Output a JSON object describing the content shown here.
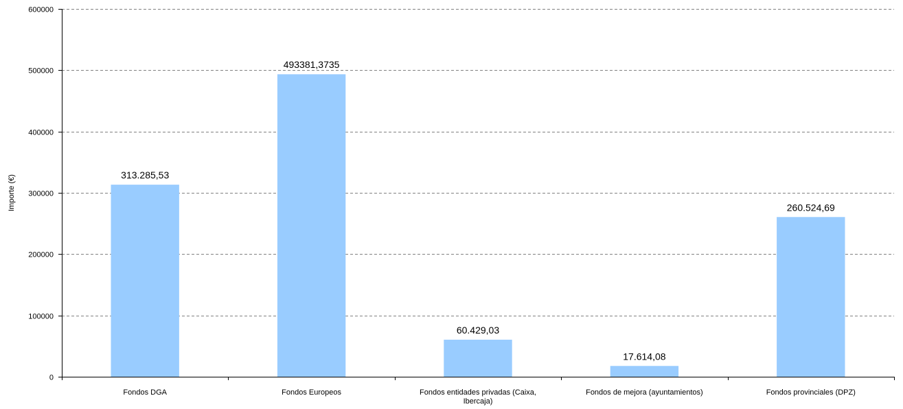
{
  "chart_data": {
    "type": "bar",
    "title": "",
    "xlabel": "",
    "ylabel": "Importe (€)",
    "ylim": [
      0,
      600000
    ],
    "yticks": [
      0,
      100000,
      200000,
      300000,
      400000,
      500000,
      600000
    ],
    "ytick_labels": [
      "0",
      "100000",
      "200000",
      "300000",
      "400000",
      "500000",
      "600000"
    ],
    "grid": true,
    "legend": "none",
    "bar_color": "#99ccff",
    "categories": [
      "Fondos DGA",
      "Fondos Europeos",
      "Fondos entidades privadas (Caixa, Ibercaja)",
      "Fondos de mejora (ayuntamientos)",
      "Fondos provinciales (DPZ)"
    ],
    "category_lines": [
      [
        "Fondos DGA"
      ],
      [
        "Fondos Europeos"
      ],
      [
        "Fondos entidades privadas (Caixa,",
        "Ibercaja)"
      ],
      [
        "Fondos de mejora (ayuntamientos)"
      ],
      [
        "Fondos provinciales (DPZ)"
      ]
    ],
    "values": [
      313285.53,
      493381.3735,
      60429.03,
      17614.08,
      260524.69
    ],
    "data_labels": [
      "313.285,53",
      "493381,3735",
      "60.429,03",
      "17.614,08",
      "260.524,69"
    ]
  }
}
